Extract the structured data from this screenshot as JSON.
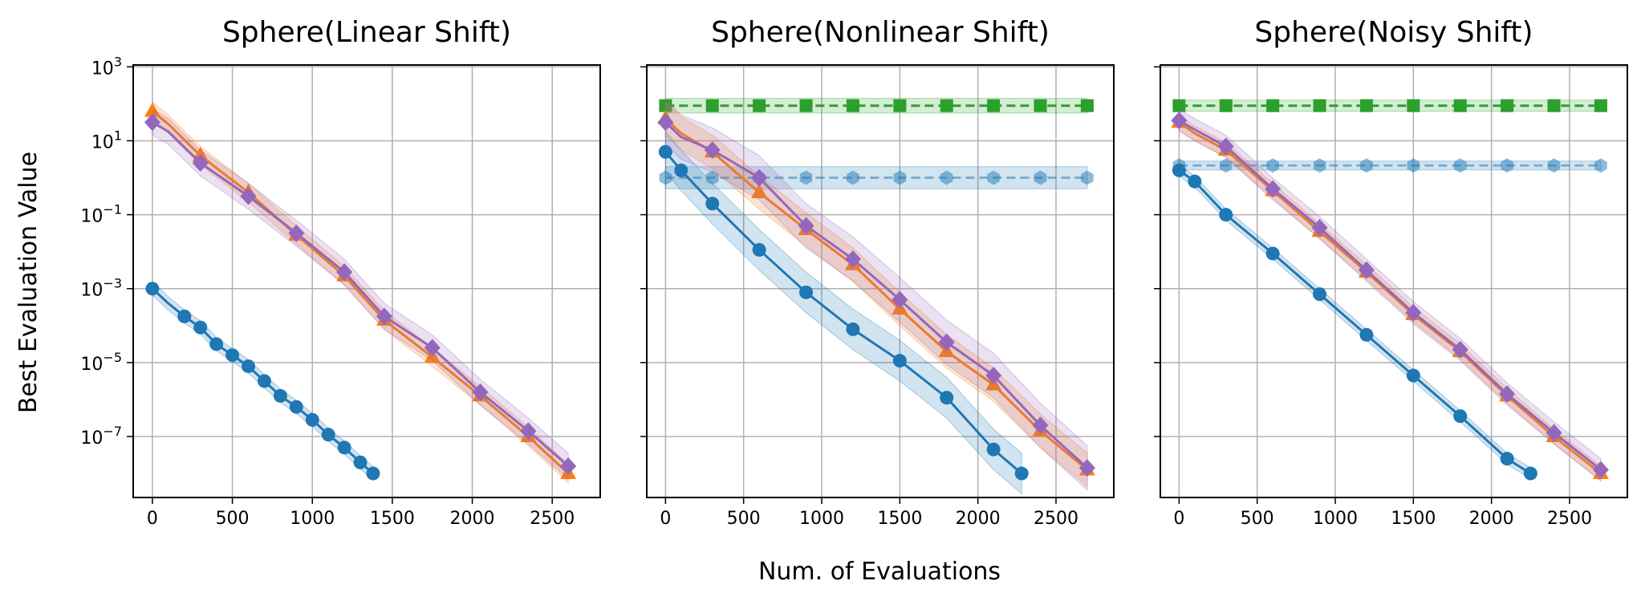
{
  "figure": {
    "ylabel": "Best Evaluation Value",
    "xlabel": "Num. of Evaluations"
  },
  "chart_data": [
    {
      "type": "line",
      "title": "Sphere(Linear Shift)",
      "xlim": [
        -120,
        2800
      ],
      "ylim_log10": [
        -8.65,
        3.05
      ],
      "yscale": "log",
      "yticks": [
        "10^3",
        "10^1",
        "10^-1",
        "10^-3",
        "10^-5",
        "10^-7"
      ],
      "xticks": [
        0,
        500,
        1000,
        1500,
        2000,
        2500
      ],
      "grid": true,
      "series": [
        {
          "color": "#1f77b4",
          "marker": "circle",
          "dashed": false,
          "band": 0.18,
          "x": [
            0,
            100,
            200,
            300,
            400,
            500,
            600,
            700,
            800,
            900,
            1000,
            1100,
            1200,
            1300,
            1380
          ],
          "y_log10": [
            -3.0,
            -3.4,
            -3.75,
            -4.05,
            -4.5,
            -4.8,
            -5.1,
            -5.5,
            -5.9,
            -6.2,
            -6.55,
            -6.95,
            -7.3,
            -7.7,
            -8.0
          ]
        },
        {
          "color": "#ff7f0e",
          "marker": "triangle",
          "dashed": false,
          "band": 0.25,
          "x": [
            0,
            100,
            300,
            600,
            900,
            1200,
            1450,
            1750,
            2050,
            2350,
            2600
          ],
          "y_log10": [
            1.8,
            1.45,
            0.6,
            -0.4,
            -1.55,
            -2.65,
            -3.85,
            -4.85,
            -5.9,
            -7.0,
            -8.0
          ]
        },
        {
          "color": "#9467bd",
          "marker": "diamond",
          "dashed": false,
          "band": 0.35,
          "x": [
            0,
            100,
            300,
            600,
            900,
            1200,
            1450,
            1750,
            2050,
            2350,
            2600
          ],
          "y_log10": [
            1.5,
            1.25,
            0.4,
            -0.5,
            -1.5,
            -2.55,
            -3.75,
            -4.6,
            -5.8,
            -6.85,
            -7.8
          ]
        }
      ]
    },
    {
      "type": "line",
      "title": "Sphere(Nonlinear Shift)",
      "xlim": [
        -120,
        2870
      ],
      "ylim_log10": [
        -8.65,
        3.05
      ],
      "yscale": "log",
      "xticks": [
        0,
        500,
        1000,
        1500,
        2000,
        2500
      ],
      "grid": true,
      "series": [
        {
          "color": "#1f77b4",
          "marker": "circle",
          "dashed": false,
          "band": 0.55,
          "x": [
            0,
            100,
            300,
            600,
            900,
            1200,
            1500,
            1800,
            2100,
            2280
          ],
          "y_log10": [
            0.7,
            0.2,
            -0.7,
            -1.95,
            -3.1,
            -4.1,
            -4.95,
            -5.95,
            -7.35,
            -8.0
          ]
        },
        {
          "color": "#1f77b4",
          "marker": "hexagon",
          "dashed": true,
          "band": 0.3,
          "alpha": 0.5,
          "x": [
            0,
            300,
            600,
            900,
            1200,
            1500,
            1800,
            2100,
            2400,
            2700
          ],
          "y_log10": [
            0.0,
            0.0,
            0.0,
            0.0,
            0.0,
            0.0,
            0.0,
            0.0,
            0.0,
            0.0
          ]
        },
        {
          "color": "#2ca02c",
          "marker": "square",
          "dashed": true,
          "band": 0.2,
          "x": [
            0,
            300,
            600,
            900,
            1200,
            1500,
            1800,
            2100,
            2400,
            2700
          ],
          "y_log10": [
            1.95,
            1.95,
            1.95,
            1.95,
            1.95,
            1.95,
            1.95,
            1.95,
            1.95,
            1.95
          ]
        },
        {
          "color": "#ff7f0e",
          "marker": "triangle",
          "dashed": false,
          "band": 0.45,
          "x": [
            0,
            100,
            300,
            600,
            900,
            1200,
            1500,
            1800,
            2100,
            2400,
            2700
          ],
          "y_log10": [
            1.6,
            1.2,
            0.7,
            -0.4,
            -1.4,
            -2.35,
            -3.55,
            -4.7,
            -5.6,
            -6.85,
            -7.9
          ]
        },
        {
          "color": "#9467bd",
          "marker": "diamond",
          "dashed": false,
          "band": 0.6,
          "x": [
            0,
            100,
            300,
            600,
            900,
            1200,
            1500,
            1800,
            2100,
            2400,
            2700
          ],
          "y_log10": [
            1.5,
            1.1,
            0.75,
            0.0,
            -1.3,
            -2.2,
            -3.3,
            -4.45,
            -5.35,
            -6.7,
            -7.85
          ]
        }
      ]
    },
    {
      "type": "line",
      "title": "Sphere(Noisy Shift)",
      "xlim": [
        -120,
        2870
      ],
      "ylim_log10": [
        -8.65,
        3.05
      ],
      "yscale": "log",
      "xticks": [
        0,
        500,
        1000,
        1500,
        2000,
        2500
      ],
      "grid": true,
      "series": [
        {
          "color": "#1f77b4",
          "marker": "circle",
          "dashed": false,
          "band": 0.15,
          "x": [
            0,
            100,
            300,
            600,
            900,
            1200,
            1500,
            1800,
            2100,
            2250
          ],
          "y_log10": [
            0.2,
            -0.1,
            -1.0,
            -2.05,
            -3.15,
            -4.25,
            -5.35,
            -6.45,
            -7.6,
            -8.0
          ]
        },
        {
          "color": "#1f77b4",
          "marker": "hexagon",
          "dashed": true,
          "band": 0.12,
          "alpha": 0.5,
          "x": [
            0,
            300,
            600,
            900,
            1200,
            1500,
            1800,
            2100,
            2400,
            2700
          ],
          "y_log10": [
            0.33,
            0.33,
            0.33,
            0.33,
            0.33,
            0.33,
            0.33,
            0.33,
            0.33,
            0.33
          ]
        },
        {
          "color": "#2ca02c",
          "marker": "square",
          "dashed": true,
          "band": 0.15,
          "x": [
            0,
            300,
            600,
            900,
            1200,
            1500,
            1800,
            2100,
            2400,
            2700
          ],
          "y_log10": [
            1.95,
            1.95,
            1.95,
            1.95,
            1.95,
            1.95,
            1.95,
            1.95,
            1.95,
            1.95
          ]
        },
        {
          "color": "#ff7f0e",
          "marker": "triangle",
          "dashed": false,
          "band": 0.2,
          "x": [
            0,
            100,
            300,
            600,
            900,
            1200,
            1500,
            1800,
            2100,
            2400,
            2700
          ],
          "y_log10": [
            1.5,
            1.2,
            0.75,
            -0.35,
            -1.45,
            -2.55,
            -3.7,
            -4.7,
            -5.9,
            -7.0,
            -8.0
          ]
        },
        {
          "color": "#9467bd",
          "marker": "diamond",
          "dashed": false,
          "band": 0.3,
          "x": [
            0,
            100,
            300,
            600,
            900,
            1200,
            1500,
            1800,
            2100,
            2400,
            2700
          ],
          "y_log10": [
            1.55,
            1.3,
            0.85,
            -0.3,
            -1.35,
            -2.5,
            -3.65,
            -4.65,
            -5.85,
            -6.9,
            -7.9
          ]
        }
      ]
    }
  ]
}
